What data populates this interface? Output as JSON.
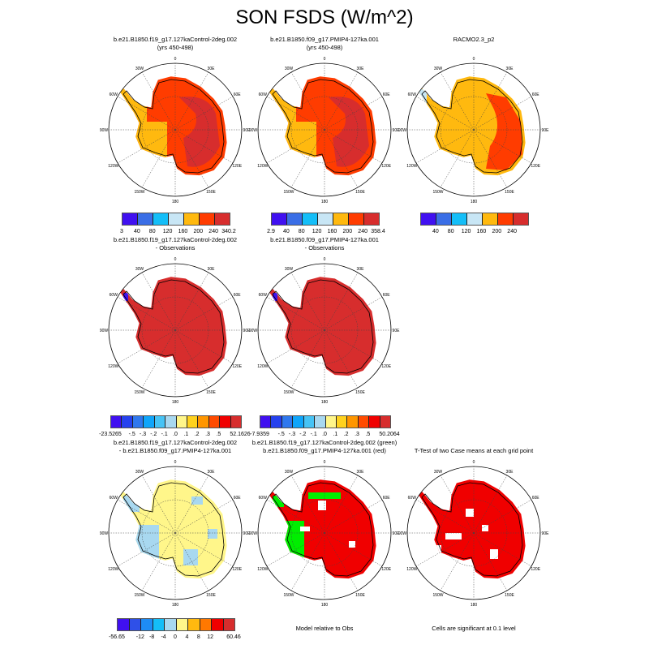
{
  "title": "SON FSDS (W/m^2)",
  "longitude_labels": [
    "0",
    "30E",
    "60E",
    "90E",
    "120E",
    "150E",
    "180",
    "150W",
    "120W",
    "90W",
    "60W",
    "30W"
  ],
  "panels": [
    {
      "title_lines": [
        "b.e21.B1850.f19_g17.127kaControl-2deg.002",
        "(yrs 450-498)"
      ],
      "style": "abs1"
    },
    {
      "title_lines": [
        "b.e21.B1850.f09_g17.PMIP4-127ka.001",
        "(yrs 450-498)"
      ],
      "style": "abs2"
    },
    {
      "title_lines": [
        "RACMO2.3_p2",
        ""
      ],
      "style": "abs3"
    },
    {
      "title_lines": [
        "b.e21.B1850.f19_g17.127kaControl-2deg.002",
        "- Observations"
      ],
      "style": "bias"
    },
    {
      "title_lines": [
        "b.e21.B1850.f09_g17.PMIP4-127ka.001",
        "- Observations"
      ],
      "style": "bias"
    },
    {
      "title_lines": [
        "b.e21.B1850.f19_g17.127kaControl-2deg.002",
        "- b.e21.B1850.f09_g17.PMIP4-127ka.001"
      ],
      "style": "diff"
    },
    {
      "title_lines": [
        "b.e21.B1850.f19_g17.127kaControl-2deg.002 (green)",
        "b.e21.B1850.f09_g17.PMIP4-127ka.001 (red)"
      ],
      "style": "greenred"
    },
    {
      "title_lines": [
        "",
        "T-Test of two Case means at each grid point"
      ],
      "style": "ttest"
    }
  ],
  "colorbars": [
    {
      "colors": [
        "#4010f0",
        "#3a6ee6",
        "#14bef8",
        "#c8e6f5",
        "#ffb90f",
        "#ff3c00",
        "#d72d2d"
      ],
      "labels": [
        "3",
        "40",
        "80",
        "120",
        "160",
        "200",
        "240",
        "340.2"
      ],
      "edges": true
    },
    {
      "colors": [
        "#4010f0",
        "#3a6ee6",
        "#14bef8",
        "#c8e6f5",
        "#ffb90f",
        "#ff3c00",
        "#d72d2d"
      ],
      "labels": [
        "2.9",
        "40",
        "80",
        "120",
        "160",
        "200",
        "240",
        "358.4"
      ],
      "edges": true
    },
    {
      "colors": [
        "#4010f0",
        "#3a6ee6",
        "#14bef8",
        "#c8e6f5",
        "#ffb90f",
        "#ff3c00",
        "#d72d2d"
      ],
      "labels": [
        "40",
        "80",
        "120",
        "160",
        "200",
        "240"
      ],
      "edges": false
    },
    {
      "colors": [
        "#4010f0",
        "#2541ee",
        "#2f78ee",
        "#0fa5fa",
        "#46c3f5",
        "#a8d8f0",
        "#fff68a",
        "#ffd21e",
        "#ff9600",
        "#ff4b00",
        "#f00000",
        "#d72d2d"
      ],
      "labels": [
        "-23.5265",
        "-.5",
        "-.3",
        "-.2",
        "-.1",
        ".0",
        ".1",
        ".2",
        ".3",
        ".5",
        "52.1626"
      ],
      "edges": "bias"
    },
    {
      "colors": [
        "#4010f0",
        "#2541ee",
        "#2f78ee",
        "#0fa5fa",
        "#46c3f5",
        "#a8d8f0",
        "#fff68a",
        "#ffd21e",
        "#ff9600",
        "#ff4b00",
        "#f00000",
        "#d72d2d"
      ],
      "labels": [
        "-7.9359",
        "-.5",
        "-.3",
        "-.2",
        "-.1",
        ".0",
        ".1",
        ".2",
        ".3",
        ".5",
        "50.2064"
      ],
      "edges": "bias"
    },
    {
      "colors": [
        "#4010f0",
        "#2f50e8",
        "#1e8cf5",
        "#14bef8",
        "#a8d8f0",
        "#fff68a",
        "#ffb90f",
        "#ff7800",
        "#f00000",
        "#d72d2d"
      ],
      "labels": [
        "-56.65",
        "-12",
        "-8",
        "-4",
        "0",
        "4",
        "8",
        "12",
        "60.46"
      ],
      "edges": "diff"
    }
  ],
  "notes": [
    "Model relative to Obs",
    "Cells are significant at 0.1 level"
  ],
  "map_colors": {
    "yellow": "#ffb90f",
    "orange": "#ff3c00",
    "darkred": "#d72d2d",
    "lightblue": "#c8e6f5",
    "green": "#00ee00",
    "red": "#f00000",
    "paleyellow": "#fff68a",
    "blue": "#a8d8f0"
  }
}
